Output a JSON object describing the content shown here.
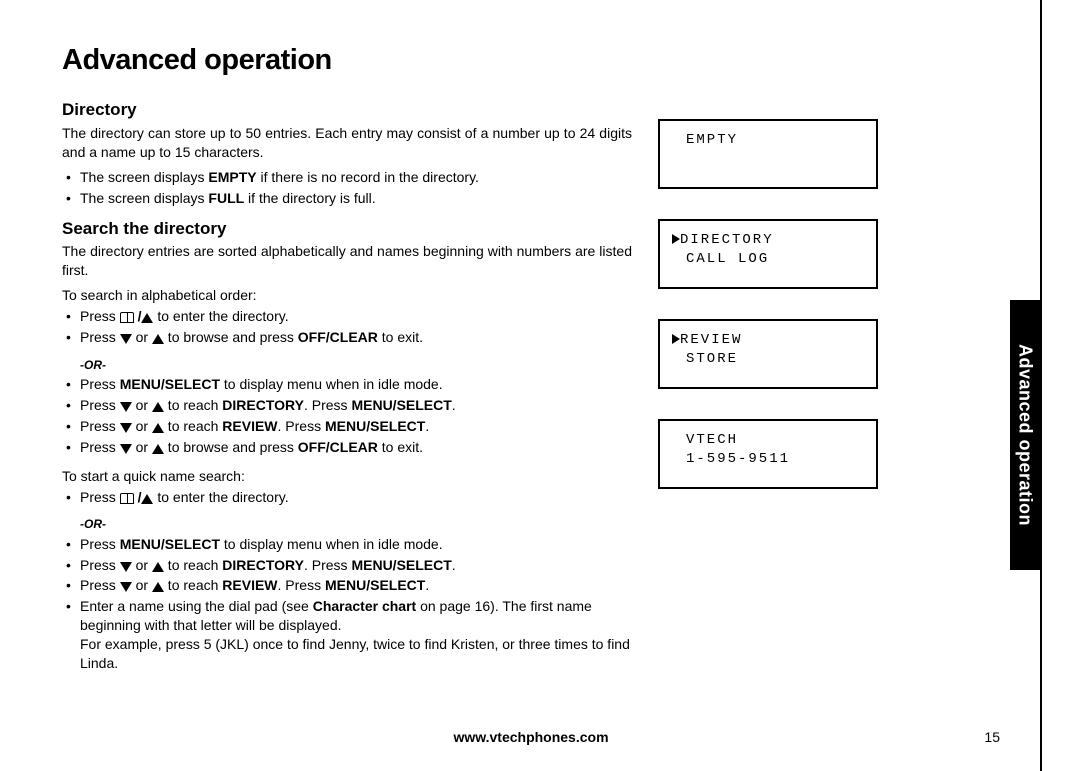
{
  "title": "Advanced operation",
  "side_tab": "Advanced operation",
  "footer_url": "www.vtechphones.com",
  "page_number": "15",
  "directory": {
    "heading": "Directory",
    "intro": "The directory can store up to 50 entries. Each entry may consist of a number up to 24 digits and a name up to 15 characters.",
    "bullet1_pre": "The screen displays ",
    "bullet1_bold": "EMPTY",
    "bullet1_post": " if there is no record in the directory.",
    "bullet2_pre": "The screen displays ",
    "bullet2_bold": "FULL",
    "bullet2_post": " if the directory is full."
  },
  "search": {
    "heading": "Search the directory",
    "intro": "The directory entries are sorted alphabetically and names beginning with numbers are listed first.",
    "lead1": "To search in alphabetical order:",
    "a1_pre": "Press ",
    "a1_post": " to enter the directory.",
    "a2_pre": "Press ",
    "a2_mid": " or ",
    "a2_post": " to browse and press ",
    "a2_bold": "OFF/CLEAR",
    "a2_end": " to exit.",
    "or": "-OR-",
    "a3_pre": "Press ",
    "a3_bold": "MENU/SELECT",
    "a3_post": " to display menu when in idle mode.",
    "a4_pre": "Press ",
    "a4_mid": " or ",
    "a4_post": " to reach ",
    "a4_bold1": "DIRECTORY",
    "a4_dot": ". Press ",
    "a4_bold2": "MENU/SELECT",
    "a4_end": ".",
    "a5_pre": "Press ",
    "a5_mid": " or ",
    "a5_post": " to reach ",
    "a5_bold1": "REVIEW",
    "a5_dot": ". Press ",
    "a5_bold2": "MENU/SELECT",
    "a5_end": ".",
    "a6_pre": "Press ",
    "a6_mid": " or ",
    "a6_post": " to browse and press ",
    "a6_bold": "OFF/CLEAR",
    "a6_end": " to exit.",
    "lead2": "To start a quick name search:",
    "b1_pre": "Press ",
    "b1_post": " to enter the directory.",
    "b3_pre": "Press ",
    "b3_bold": "MENU/SELECT",
    "b3_post": " to display menu when in idle mode.",
    "b4_pre": "Press ",
    "b4_mid": " or ",
    "b4_post": " to reach ",
    "b4_bold1": "DIRECTORY",
    "b4_dot": ". Press ",
    "b4_bold2": "MENU/SELECT",
    "b4_end": ".",
    "b5_pre": "Press ",
    "b5_mid": " or ",
    "b5_post": " to reach ",
    "b5_bold1": "REVIEW",
    "b5_dot": ". Press ",
    "b5_bold2": "MENU/SELECT",
    "b5_end": ".",
    "b6_pre": "Enter a name using the dial pad (see ",
    "b6_bold": "Character chart",
    "b6_post": " on page 16). The first name beginning with that letter will be displayed.",
    "b6_sub": "For example, press 5 (JKL) once to find Jenny, twice to find Kristen, or three times to find Linda."
  },
  "lcds": {
    "l1_line1": "EMPTY",
    "l2_line1": "DIRECTORY",
    "l2_line2": "CALL LOG",
    "l3_line1": "REVIEW",
    "l3_line2": "STORE",
    "l4_line1": "VTECH",
    "l4_line2": "1-595-9511"
  }
}
